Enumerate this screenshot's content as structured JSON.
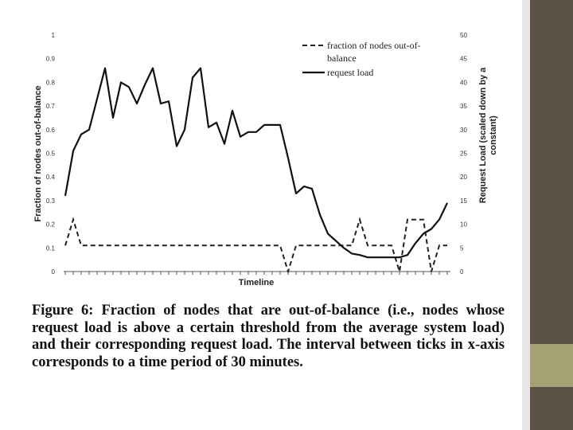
{
  "chart_data": {
    "type": "line",
    "xlabel": "Timeline",
    "ylabel_left": "Fraction of nodes out-of-balance",
    "ylabel_right_line1": "Request   Load (scaled down by a",
    "ylabel_right_line2": "constant)",
    "ylim_left": [
      0,
      1
    ],
    "ylim_right": [
      0,
      50
    ],
    "yticks_left": [
      "0",
      "0.1",
      "0.2",
      "0.3",
      "0.4",
      "0.5",
      "0.6",
      "0.7",
      "0.8",
      "0.9",
      "1"
    ],
    "yticks_right": [
      "0",
      "5",
      "10",
      "15",
      "20",
      "25",
      "30",
      "35",
      "40",
      "45",
      "50"
    ],
    "legend_position": "top-right",
    "grid": false,
    "x_points": 49,
    "series": [
      {
        "name_line1": "fraction of nodes out-of-",
        "name_line2": "balance",
        "axis": "left",
        "style": "dashed",
        "values": [
          0.11,
          0.22,
          0.11,
          0.11,
          0.11,
          0.11,
          0.11,
          0.11,
          0.11,
          0.11,
          0.11,
          0.11,
          0.11,
          0.11,
          0.11,
          0.11,
          0.11,
          0.11,
          0.11,
          0.11,
          0.11,
          0.11,
          0.11,
          0.11,
          0.11,
          0.11,
          0.11,
          0.11,
          0.0,
          0.11,
          0.11,
          0.11,
          0.11,
          0.11,
          0.11,
          0.11,
          0.11,
          0.22,
          0.11,
          0.11,
          0.11,
          0.11,
          0.0,
          0.22,
          0.22,
          0.22,
          0.0,
          0.11,
          0.11
        ]
      },
      {
        "name": "request load",
        "axis": "right",
        "style": "solid",
        "values": [
          16,
          25.5,
          29,
          30,
          36.5,
          43,
          32.5,
          40,
          39,
          35.5,
          39.5,
          43,
          35.5,
          36,
          26.5,
          30,
          41,
          43,
          30.5,
          31.5,
          27,
          34,
          28.5,
          29.5,
          29.5,
          31,
          31,
          31,
          24,
          16.5,
          18,
          17.5,
          12,
          8,
          6.5,
          5,
          3.8,
          3.5,
          3,
          3,
          3,
          3,
          3,
          3.5,
          6,
          8,
          9,
          11,
          14.5
        ]
      }
    ]
  },
  "caption": "Figure 6: Fraction of nodes that are out-of-balance (i.e., nodes whose request load is above a certain threshold from the average system load) and their corresponding request load. The interval between ticks in x-axis corresponds to a time period of 30 minutes."
}
